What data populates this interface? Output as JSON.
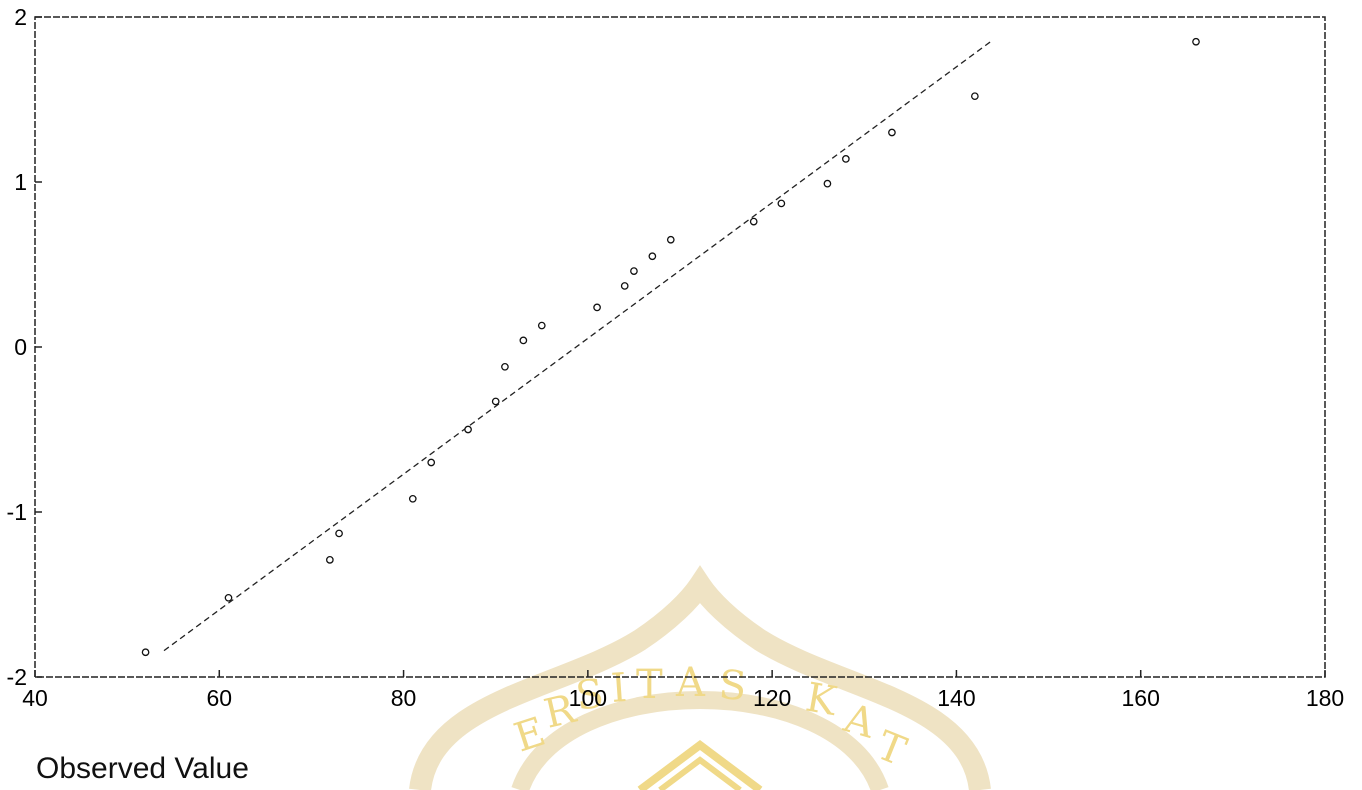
{
  "chart_data": {
    "type": "scatter",
    "title": "",
    "xlabel": "Observed Value",
    "ylabel": "",
    "xlim": [
      40,
      180
    ],
    "ylim": [
      -2,
      2
    ],
    "x_ticks": [
      "40",
      "60",
      "80",
      "100",
      "120",
      "140",
      "160",
      "180"
    ],
    "y_ticks": [
      "2",
      "1",
      "0",
      "-1",
      "-2"
    ],
    "grid": false,
    "series": [
      {
        "marker": "circle",
        "points": [
          [
            52,
            -1.85
          ],
          [
            61,
            -1.52
          ],
          [
            72,
            -1.29
          ],
          [
            73,
            -1.13
          ],
          [
            81,
            -0.92
          ],
          [
            83,
            -0.7
          ],
          [
            87,
            -0.5
          ],
          [
            90,
            -0.33
          ],
          [
            91,
            -0.12
          ],
          [
            93,
            0.04
          ],
          [
            95,
            0.13
          ],
          [
            101,
            0.24
          ],
          [
            104,
            0.37
          ],
          [
            105,
            0.46
          ],
          [
            107,
            0.55
          ],
          [
            109,
            0.65
          ],
          [
            118,
            0.76
          ],
          [
            121,
            0.87
          ],
          [
            126,
            0.99
          ],
          [
            128,
            1.14
          ],
          [
            133,
            1.3
          ],
          [
            142,
            1.52
          ],
          [
            166,
            1.85
          ]
        ]
      }
    ],
    "reference_line": {
      "style": "dashed",
      "from": [
        54,
        -1.84
      ],
      "to": [
        143.7,
        1.85
      ]
    },
    "watermark": {
      "text": "ERSITAS KAT",
      "color": "#f0d988"
    }
  }
}
